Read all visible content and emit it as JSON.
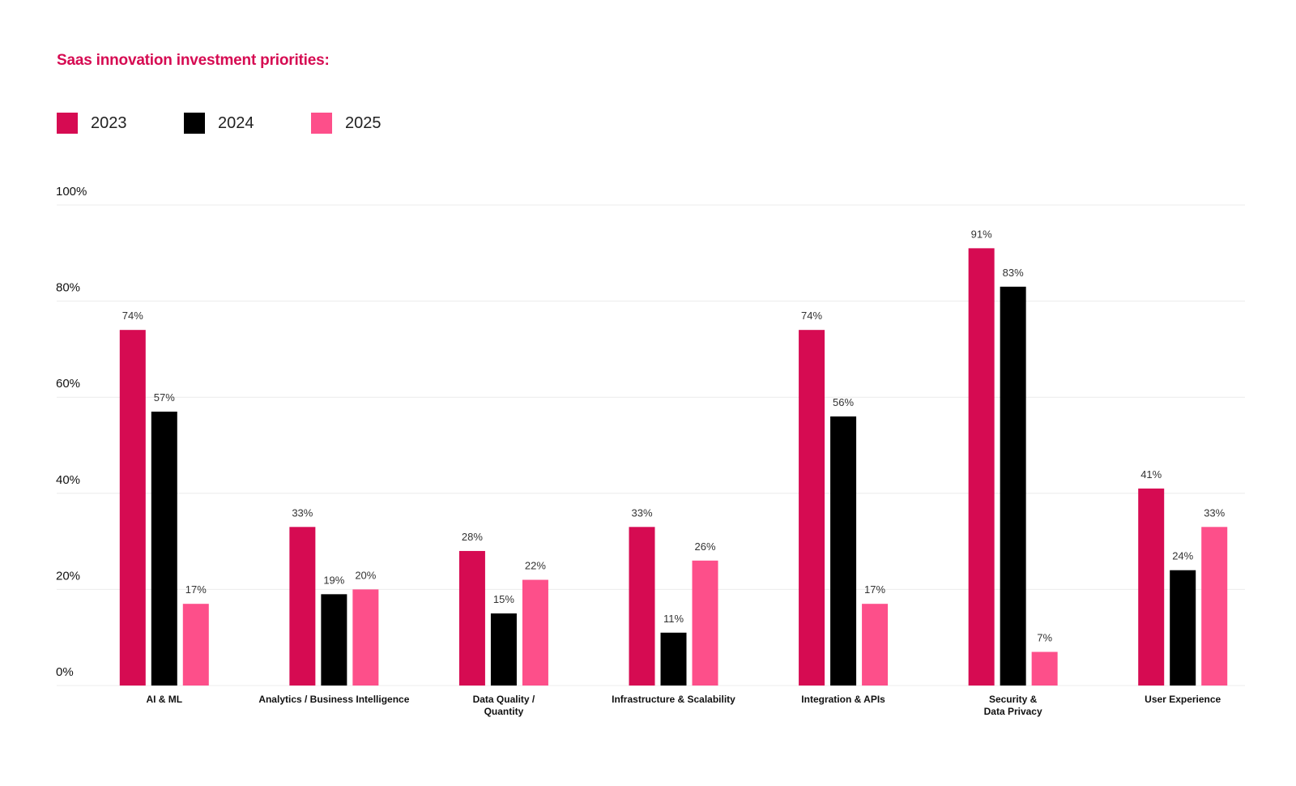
{
  "chart_data": {
    "type": "bar",
    "title": "Saas innovation investment priorities:",
    "categories": [
      [
        "AI & ML"
      ],
      [
        "Analytics / Business Intelligence"
      ],
      [
        "Data Quality /",
        "Quantity"
      ],
      [
        "Infrastructure & Scalability"
      ],
      [
        "Integration & APIs"
      ],
      [
        "Security &",
        "Data Privacy"
      ],
      [
        "User Experience"
      ]
    ],
    "series": [
      {
        "name": "2023",
        "color": "#d60b52",
        "values": [
          74,
          33,
          28,
          33,
          74,
          91,
          41
        ]
      },
      {
        "name": "2024",
        "color": "#000000",
        "values": [
          57,
          19,
          15,
          11,
          56,
          83,
          24
        ]
      },
      {
        "name": "2025",
        "color": "#fd4f8a",
        "values": [
          17,
          20,
          22,
          26,
          17,
          7,
          33
        ]
      }
    ],
    "value_labels": [
      [
        "74%",
        "33%",
        "28%",
        "33%",
        "74%",
        "91%",
        "41%"
      ],
      [
        "57%",
        "19%",
        "15%",
        "11%",
        "56%",
        "83%",
        "24%"
      ],
      [
        "17%",
        "20%",
        "22%",
        "26%",
        "17%",
        "7%",
        "33%"
      ]
    ],
    "yticks": [
      "0%",
      "20%",
      "40%",
      "60%",
      "80%",
      "100%"
    ],
    "ylim": [
      0,
      100
    ],
    "grid": true,
    "legend_position": "top-left"
  }
}
